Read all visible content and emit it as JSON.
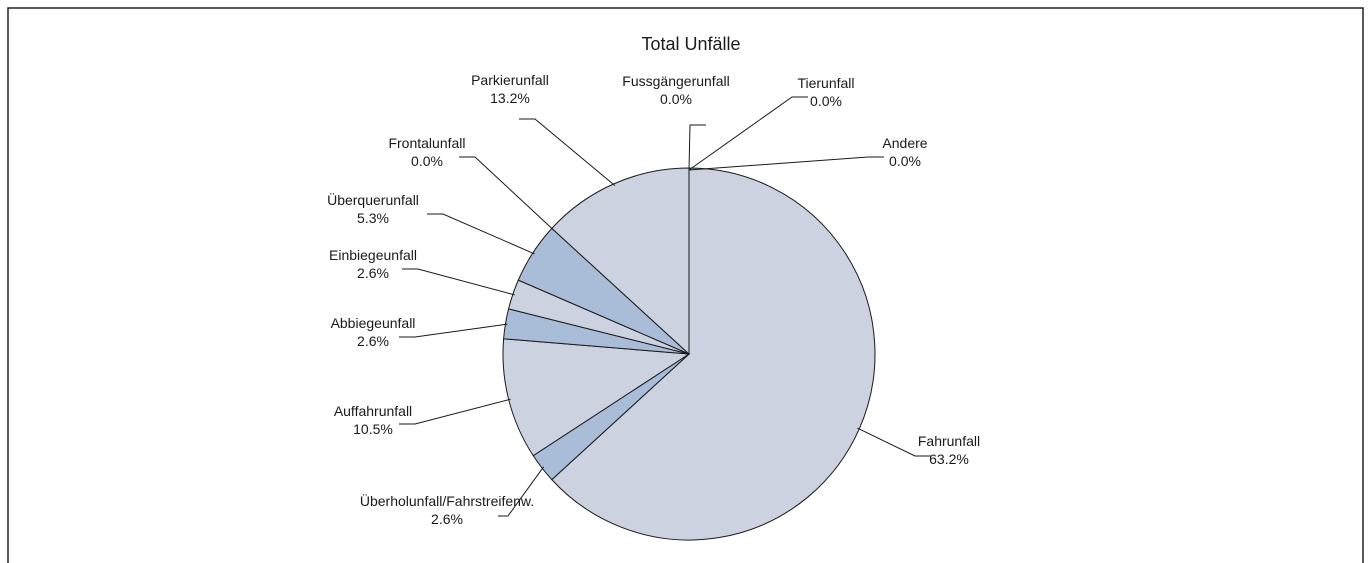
{
  "chart_data": {
    "type": "pie",
    "title": "Total Unfälle",
    "unit": "%",
    "slices": [
      {
        "label": "Fahrunfall",
        "value": 63.2,
        "value_text": "63.2%"
      },
      {
        "label": "Überholunfall/Fahrstreifenw.",
        "value": 2.6,
        "value_text": "2.6%"
      },
      {
        "label": "Auffahrunfall",
        "value": 10.5,
        "value_text": "10.5%"
      },
      {
        "label": "Abbiegeunfall",
        "value": 2.6,
        "value_text": "2.6%"
      },
      {
        "label": "Einbiegeunfall",
        "value": 2.6,
        "value_text": "2.6%"
      },
      {
        "label": "Überquerunfall",
        "value": 5.3,
        "value_text": "5.3%"
      },
      {
        "label": "Frontalunfall",
        "value": 0.0,
        "value_text": "0.0%"
      },
      {
        "label": "Parkierunfall",
        "value": 13.2,
        "value_text": "13.2%"
      },
      {
        "label": "Fussgängerunfall",
        "value": 0.0,
        "value_text": "0.0%"
      },
      {
        "label": "Tierunfall",
        "value": 0.0,
        "value_text": "0.0%"
      },
      {
        "label": "Andere",
        "value": 0.0,
        "value_text": "0.0%"
      }
    ],
    "start_angle_deg": 0,
    "direction": "clockwise",
    "colors": {
      "light": "#cdd2e0",
      "accent": "#a9bcd8",
      "stroke": "#1a1a1a",
      "frame": "#222222"
    },
    "slice_color_keys": [
      "light",
      "accent",
      "light",
      "accent",
      "light",
      "accent",
      "light",
      "light",
      "light",
      "light",
      "light"
    ]
  }
}
